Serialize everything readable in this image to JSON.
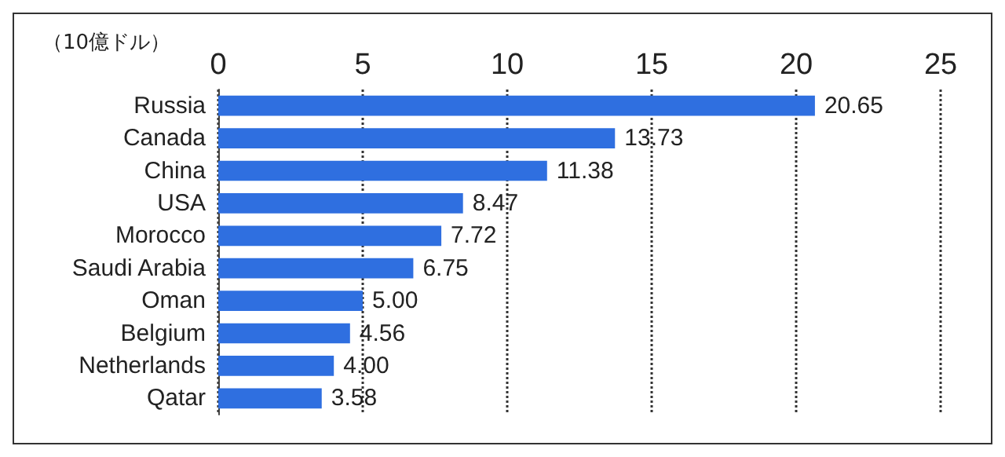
{
  "chart_data": {
    "type": "bar",
    "orientation": "horizontal",
    "xlabel": "（10億ドル）",
    "categories": [
      "Russia",
      "Canada",
      "China",
      "USA",
      "Morocco",
      "Saudi Arabia",
      "Oman",
      "Belgium",
      "Netherlands",
      "Qatar"
    ],
    "values": [
      20.65,
      13.73,
      11.38,
      8.47,
      7.72,
      6.75,
      5.0,
      4.56,
      4.0,
      3.58
    ],
    "value_labels": [
      "20.65",
      "13.73",
      "11.38",
      "8.47",
      "7.72",
      "6.75",
      "5.00",
      "4.56",
      "4.00",
      "3.58"
    ],
    "color": "#2f6fe0",
    "xlim": [
      0,
      25
    ],
    "xticks": [
      0,
      5,
      10,
      15,
      20,
      25
    ],
    "grid": "x",
    "line_style": "dotted"
  }
}
